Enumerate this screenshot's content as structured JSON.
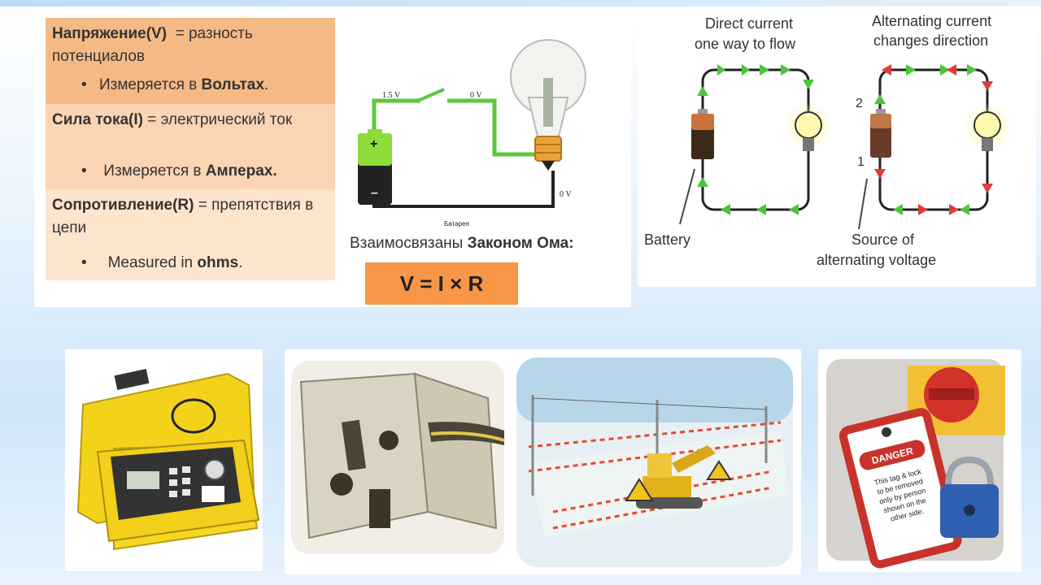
{
  "ohm_panel": {
    "voltage": {
      "term": "Напряжение(V)",
      "definition": "= разность потенциалов",
      "measured_prefix": "Измеряется в ",
      "measured_unit": "Вольтах",
      "measured_suffix": "."
    },
    "current": {
      "term": "Сила тока(I)",
      "definition": "= электрический ток",
      "measured_prefix": "Измеряется в ",
      "measured_unit": "Амперах."
    },
    "resistance": {
      "term": "Сопротивление(R)",
      "definition": "= препятствия в цепи",
      "measured_prefix": "Measured in ",
      "measured_unit": "ohms",
      "measured_suffix": "."
    }
  },
  "circuit": {
    "voltage_source": "1.5 V",
    "voltage_after_switch": "0 V",
    "voltage_return": "0 V",
    "battery_caption": "Батарея"
  },
  "ohm_law": {
    "prefix": "Взаимосвязаны ",
    "bold": "Законом Ома:",
    "formula": "V = I × R"
  },
  "acdc": {
    "dc_title_1": "Direct current",
    "dc_title_2": "one way to flow",
    "ac_title_1": "Alternating current",
    "ac_title_2": "changes direction",
    "battery_label": "Battery",
    "source_label_1": "Source of",
    "source_label_2": "alternating voltage",
    "marker_1": "1",
    "marker_2": "2"
  },
  "photos": {
    "tag_danger": "DANGER",
    "tag_text": [
      "This tag & lock",
      "to be removed",
      "only by person",
      "shown on the",
      "other side."
    ]
  }
}
